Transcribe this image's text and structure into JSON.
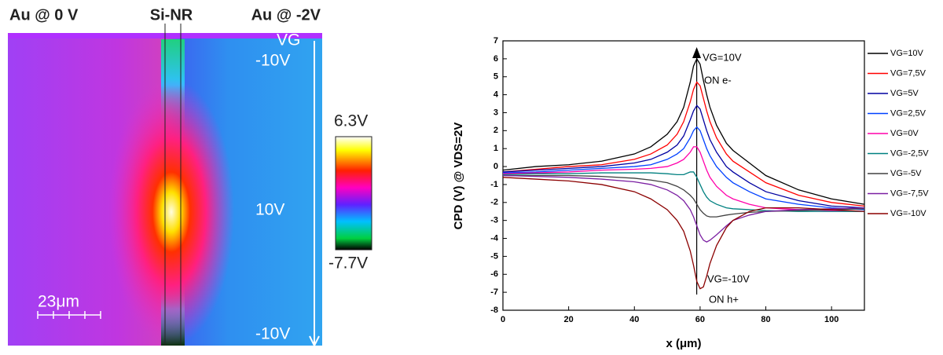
{
  "image_panel": {
    "left_label": "Au @ 0 V",
    "center_label": "Si-NR",
    "right_label": "Au @ -2V",
    "gate_label": "VG",
    "top_gate": "-10V",
    "middle_gate": "10V",
    "bottom_gate": "-10V",
    "colorbar_max": "6.3V",
    "colorbar_min": "-7.7V",
    "scale_bar": "23μm"
  },
  "chart_data": {
    "type": "line",
    "x_label": "x (μm)",
    "y_label": "CPD (V) @ VDS=2V",
    "annotations": [
      "VG=10V",
      "ON e-",
      "VG=-10V",
      "ON h+"
    ],
    "xlim": [
      0,
      110
    ],
    "xticks": [
      0,
      20,
      40,
      60,
      80,
      100
    ],
    "ylim": [
      -8,
      7
    ],
    "yticks": [
      -8,
      -7,
      -6,
      -5,
      -4,
      -3,
      -2,
      -1,
      0,
      1,
      2,
      3,
      4,
      5,
      6,
      7
    ],
    "legend": "right",
    "x": [
      0,
      10,
      20,
      30,
      40,
      45,
      50,
      53,
      55,
      57,
      58,
      59,
      60,
      61,
      62,
      63,
      65,
      68,
      70,
      75,
      80,
      90,
      100,
      110
    ],
    "series": [
      {
        "name": "VG=10V",
        "color": "#000000",
        "values": [
          -0.2,
          0,
          0.1,
          0.3,
          0.7,
          1.1,
          1.8,
          2.5,
          3.3,
          4.7,
          5.6,
          6,
          5.7,
          4.8,
          4,
          3.3,
          2.3,
          1.3,
          0.9,
          0.2,
          -0.5,
          -1.3,
          -1.8,
          -2.1
        ]
      },
      {
        "name": "VG=7,5V",
        "color": "#ff0000",
        "values": [
          -0.3,
          -0.15,
          0,
          0.1,
          0.4,
          0.7,
          1.2,
          1.8,
          2.5,
          3.6,
          4.3,
          4.7,
          4.5,
          3.8,
          3.1,
          2.5,
          1.6,
          0.7,
          0.3,
          -0.3,
          -0.9,
          -1.6,
          -2,
          -2.2
        ]
      },
      {
        "name": "VG=5V",
        "color": "#0000a0",
        "values": [
          -0.3,
          -0.2,
          -0.1,
          0,
          0.2,
          0.4,
          0.8,
          1.2,
          1.7,
          2.6,
          3.1,
          3.4,
          3.2,
          2.6,
          2,
          1.5,
          0.8,
          0,
          -0.3,
          -0.9,
          -1.4,
          -1.9,
          -2.2,
          -2.3
        ]
      },
      {
        "name": "VG=2,5V",
        "color": "#0040ff",
        "values": [
          -0.35,
          -0.3,
          -0.2,
          -0.1,
          0,
          0.1,
          0.4,
          0.7,
          1,
          1.6,
          2,
          2.2,
          2,
          1.5,
          1,
          0.6,
          0,
          -0.6,
          -0.9,
          -1.4,
          -1.8,
          -2.1,
          -2.3,
          -2.4
        ]
      },
      {
        "name": "VG=0V",
        "color": "#ff00aa",
        "values": [
          -0.4,
          -0.35,
          -0.3,
          -0.2,
          -0.15,
          -0.1,
          0,
          0.2,
          0.4,
          0.8,
          1.1,
          1.1,
          0.8,
          0.3,
          -0.2,
          -0.6,
          -1.1,
          -1.6,
          -1.8,
          -2.1,
          -2.3,
          -2.4,
          -2.45,
          -2.5
        ]
      },
      {
        "name": "VG=-2,5V",
        "color": "#008080",
        "values": [
          -0.45,
          -0.4,
          -0.4,
          -0.35,
          -0.35,
          -0.35,
          -0.4,
          -0.45,
          -0.45,
          -0.3,
          -0.3,
          -0.6,
          -1,
          -1.4,
          -1.7,
          -1.9,
          -2.1,
          -2.3,
          -2.35,
          -2.4,
          -2.45,
          -2.5,
          -2.5,
          -2.5
        ]
      },
      {
        "name": "VG=-5V",
        "color": "#404040",
        "values": [
          -0.5,
          -0.5,
          -0.5,
          -0.55,
          -0.65,
          -0.75,
          -0.9,
          -1.1,
          -1.3,
          -1.6,
          -1.8,
          -2.1,
          -2.4,
          -2.6,
          -2.75,
          -2.8,
          -2.8,
          -2.7,
          -2.65,
          -2.55,
          -2.5,
          -2.45,
          -2.4,
          -2.35
        ]
      },
      {
        "name": "VG=-7,5V",
        "color": "#7b1fa2",
        "values": [
          -0.5,
          -0.55,
          -0.6,
          -0.7,
          -0.85,
          -1,
          -1.3,
          -1.6,
          -1.9,
          -2.4,
          -2.8,
          -3.3,
          -3.8,
          -4.1,
          -4.2,
          -4.1,
          -3.8,
          -3.3,
          -3,
          -2.7,
          -2.5,
          -2.4,
          -2.35,
          -2.3
        ]
      },
      {
        "name": "VG=-10V",
        "color": "#8b0000",
        "values": [
          -0.6,
          -0.7,
          -0.8,
          -1,
          -1.4,
          -1.8,
          -2.4,
          -3,
          -3.6,
          -4.7,
          -5.5,
          -6.4,
          -6.8,
          -6.7,
          -6.1,
          -5.4,
          -4.4,
          -3.4,
          -3,
          -2.5,
          -2.3,
          -2.3,
          -2.4,
          -2.5
        ]
      }
    ]
  }
}
